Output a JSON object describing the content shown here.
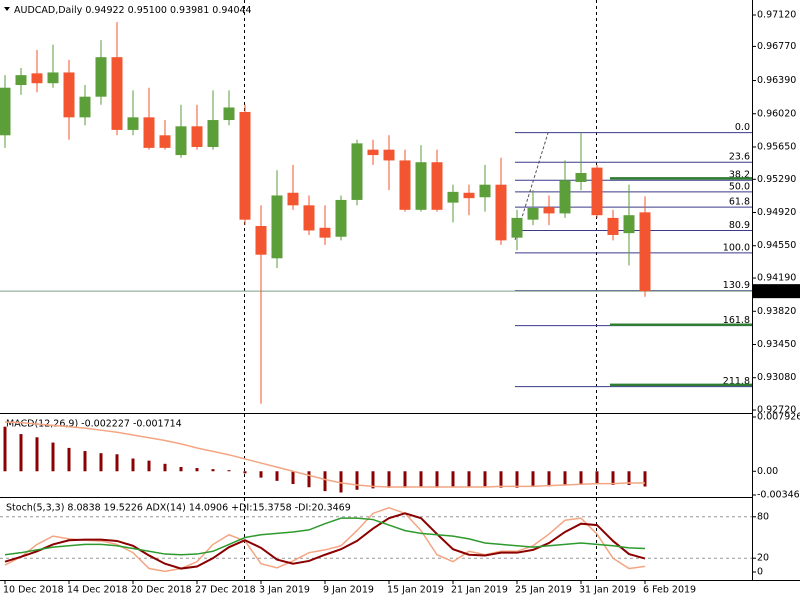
{
  "chart_data": [
    {
      "type": "candlestick",
      "symbol": "AUDCAD,Daily",
      "ohlc_text": [
        "0.94922",
        "0.95100",
        "0.93981",
        "0.94044"
      ],
      "categories": [
        "10 Dec 2018",
        null,
        null,
        null,
        "14 Dec 2018",
        null,
        null,
        null,
        "20 Dec 2018",
        null,
        null,
        null,
        "27 Dec 2018",
        null,
        null,
        null,
        "3 Jan 2019",
        null,
        null,
        null,
        "9 Jan 2019",
        null,
        null,
        null,
        "15 Jan 2019",
        null,
        null,
        null,
        "21 Jan 2019",
        null,
        null,
        null,
        "25 Jan 2019",
        null,
        null,
        null,
        "31 Jan 2019",
        null,
        null,
        null,
        "6 Feb 2019"
      ],
      "open": [
        0.9578,
        0.9634,
        0.9647,
        0.9636,
        0.9648,
        0.9598,
        0.9621,
        0.9665,
        0.9584,
        0.9598,
        0.9578,
        0.9556,
        0.9588,
        0.9565,
        0.9595,
        0.9604,
        0.9477,
        0.9441,
        0.9514,
        0.95,
        0.9475,
        0.9465,
        0.9506,
        0.9562,
        0.9562,
        0.955,
        0.9495,
        0.9548,
        0.9503,
        0.9514,
        0.9509,
        0.9523,
        0.9464,
        0.9484,
        0.9498,
        0.9491,
        0.9526,
        0.9542,
        0.9486,
        0.9469,
        0.94922
      ],
      "high": [
        0.9645,
        0.9653,
        0.9673,
        0.9679,
        0.9662,
        0.9634,
        0.9684,
        0.9704,
        0.9628,
        0.9631,
        0.9595,
        0.9612,
        0.9612,
        0.9628,
        0.9628,
        0.9612,
        0.95,
        0.9539,
        0.9545,
        0.9511,
        0.95,
        0.9511,
        0.9573,
        0.9573,
        0.9578,
        0.9562,
        0.9567,
        0.9562,
        0.9523,
        0.9523,
        0.9545,
        0.9553,
        0.9495,
        0.9517,
        0.9511,
        0.955,
        0.9581,
        0.9545,
        0.9495,
        0.9523,
        0.951
      ],
      "low": [
        0.9564,
        0.9623,
        0.9626,
        0.9631,
        0.9573,
        0.9589,
        0.9612,
        0.9578,
        0.9578,
        0.9562,
        0.9562,
        0.9553,
        0.9562,
        0.9562,
        0.9589,
        0.9478,
        0.9279,
        0.943,
        0.9495,
        0.9467,
        0.9456,
        0.9461,
        0.95,
        0.9545,
        0.9517,
        0.9493,
        0.9493,
        0.9493,
        0.9481,
        0.9489,
        0.9493,
        0.9456,
        0.945,
        0.9478,
        0.9478,
        0.9486,
        0.9517,
        0.9486,
        0.9461,
        0.9433,
        0.93981
      ],
      "close": [
        0.9631,
        0.9645,
        0.9636,
        0.9648,
        0.9598,
        0.9621,
        0.9665,
        0.9584,
        0.9598,
        0.9564,
        0.9564,
        0.9588,
        0.9565,
        0.9595,
        0.9609,
        0.9484,
        0.9445,
        0.9511,
        0.95,
        0.9472,
        0.9464,
        0.9506,
        0.9569,
        0.9556,
        0.955,
        0.9495,
        0.9548,
        0.9495,
        0.9515,
        0.9508,
        0.9523,
        0.9461,
        0.9486,
        0.9497,
        0.9491,
        0.9528,
        0.9536,
        0.9489,
        0.9467,
        0.9489,
        0.94044
      ],
      "up_color": "#5b9e3a",
      "down_color": "#f2552f",
      "ylim": [
        0.92698,
        0.97287
      ],
      "yticks": [
        {
          "value": 0.9712,
          "label": "0.97120"
        },
        {
          "value": 0.9677,
          "label": "0.96770"
        },
        {
          "value": 0.9639,
          "label": "0.96390"
        },
        {
          "value": 0.9602,
          "label": "0.96020"
        },
        {
          "value": 0.9565,
          "label": "0.95650"
        },
        {
          "value": 0.9529,
          "label": "0.95290"
        },
        {
          "value": 0.9492,
          "label": "0.94920"
        },
        {
          "value": 0.9455,
          "label": "0.94550"
        },
        {
          "value": 0.9419,
          "label": "0.94190"
        },
        {
          "value": 0.9382,
          "label": "0.93820"
        },
        {
          "value": 0.9345,
          "label": "0.93450"
        },
        {
          "value": 0.9308,
          "label": "0.93080"
        },
        {
          "value": 0.9272,
          "label": "0.92720"
        }
      ],
      "last_price": 0.94044,
      "fib_color": "#3a3a8a",
      "fib_levels": [
        {
          "label": "0.0",
          "price": 0.9581
        },
        {
          "label": "23.6",
          "price": 0.9548
        },
        {
          "label": "38.2",
          "price": 0.9528
        },
        {
          "label": "50.0",
          "price": 0.9515
        },
        {
          "label": "61.8",
          "price": 0.9498
        },
        {
          "label": "80.9",
          "price": 0.9472
        },
        {
          "label": "100.0",
          "price": 0.9447
        },
        {
          "label": "130.9",
          "price": 0.9405
        },
        {
          "label": "161.8",
          "price": 0.9366
        },
        {
          "label": "211.8",
          "price": 0.9298
        }
      ],
      "hline_color": "#2e7d32",
      "hlines": [
        0.953,
        0.9367,
        0.93
      ]
    },
    {
      "type": "macd",
      "title": "MACD(12,26,9) -0.002227 -0.001714",
      "ylim": [
        -0.003467,
        0.007926
      ],
      "yticks": [
        0.007926,
        {
          "value": 0,
          "label": "0.00"
        },
        -0.003467
      ],
      "series": [
        {
          "kind": "bar",
          "color": "#8b0000",
          "values": [
            0.00651,
            0.00543,
            0.00496,
            0.00419,
            0.00341,
            0.00295,
            0.00264,
            0.00248,
            0.00186,
            0.00155,
            0.00109,
            0.00062,
            0.00047,
            0.00031,
            0.00016,
            -0.00031,
            -0.00093,
            -0.0014,
            -0.00186,
            -0.00233,
            -0.0029,
            -0.0031,
            -0.0027,
            -0.0025,
            -0.0024,
            -0.0024,
            -0.0023,
            -0.0024,
            -0.0023,
            -0.0023,
            -0.0022,
            -0.0024,
            -0.0024,
            -0.0023,
            -0.0022,
            -0.002,
            -0.0019,
            -0.0019,
            -0.002,
            -0.002,
            -0.002227
          ]
        },
        {
          "kind": "line",
          "color": "#f4a582",
          "values": [
            0.0072,
            0.0071,
            0.0069,
            0.0067,
            0.0065,
            0.0063,
            0.006,
            0.0057,
            0.0053,
            0.0049,
            0.0045,
            0.004,
            0.0034,
            0.0029,
            0.0024,
            0.0018,
            0.0012,
            0.0006,
            0.0,
            -0.0006,
            -0.0012,
            -0.0017,
            -0.002,
            -0.0022,
            -0.0023,
            -0.0023,
            -0.0023,
            -0.0023,
            -0.0023,
            -0.0023,
            -0.0023,
            -0.0022,
            -0.0022,
            -0.0022,
            -0.0021,
            -0.002,
            -0.0019,
            -0.0018,
            -0.0018,
            -0.0017,
            -0.001714
          ]
        }
      ]
    },
    {
      "type": "line",
      "title": "Stoch(5,3,3) 8.0838 19.5226 ADX(14) 14.0906 +DI:15.3758 -DI:20.3469",
      "ylim": [
        0,
        100
      ],
      "yticks": [
        80,
        20,
        0
      ],
      "dashed_levels": [
        80,
        20
      ],
      "series": [
        {
          "color": "#f4a582",
          "values": [
            10,
            22,
            40,
            52,
            48,
            46,
            45,
            40,
            28,
            5,
            1,
            5,
            15,
            40,
            54,
            45,
            12,
            6,
            16,
            28,
            32,
            38,
            60,
            85,
            93,
            85,
            60,
            25,
            15,
            30,
            25,
            30,
            30,
            38,
            55,
            75,
            78,
            55,
            20,
            5,
            8.0838
          ]
        },
        {
          "color": "#8b0000",
          "values": [
            15,
            22,
            30,
            40,
            46,
            47,
            47,
            45,
            38,
            24,
            12,
            5,
            8,
            20,
            36,
            46,
            35,
            18,
            12,
            16,
            25,
            33,
            45,
            63,
            78,
            85,
            78,
            55,
            33,
            25,
            24,
            28,
            28,
            32,
            42,
            58,
            70,
            68,
            45,
            26,
            19.5226
          ]
        },
        {
          "color": "#2e9a2e",
          "values": [
            25,
            28,
            32,
            36,
            38,
            40,
            40,
            38,
            34,
            30,
            26,
            25,
            26,
            30,
            40,
            50,
            54,
            56,
            58,
            61,
            70,
            78,
            78,
            76,
            68,
            60,
            56,
            54,
            52,
            48,
            42,
            40,
            38,
            36,
            38,
            40,
            42,
            40,
            38,
            35,
            34
          ]
        }
      ]
    }
  ]
}
